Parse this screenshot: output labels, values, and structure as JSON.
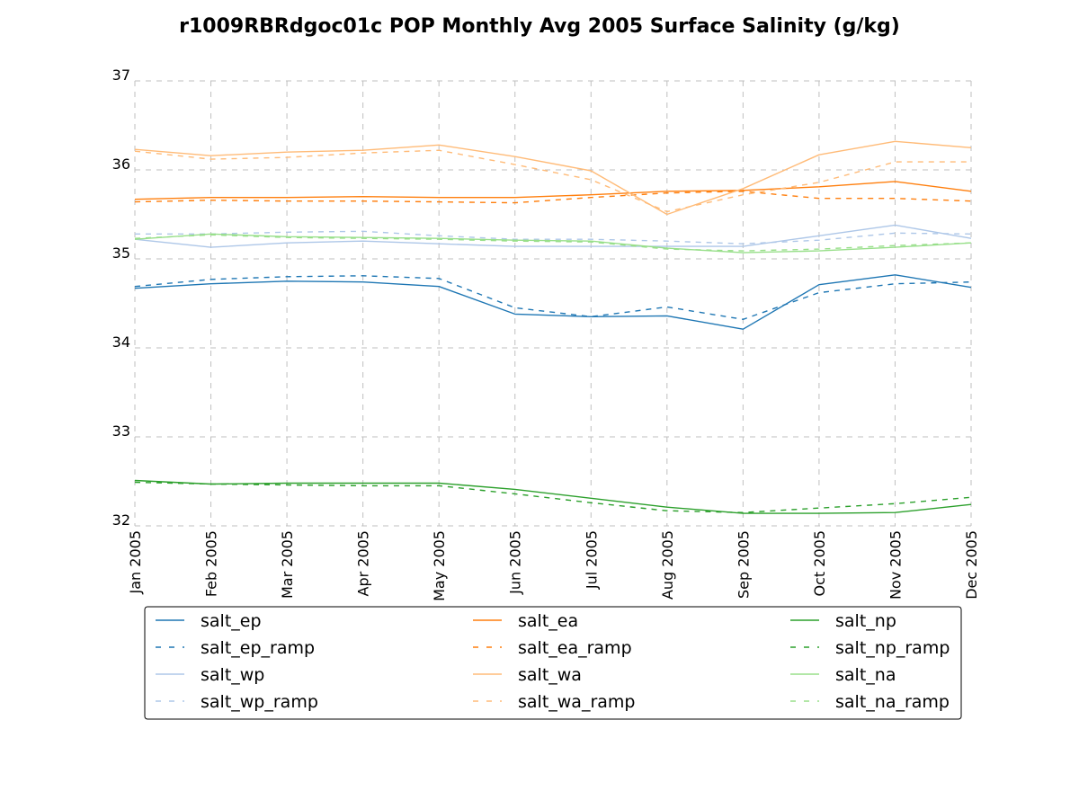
{
  "chart_data": {
    "type": "line",
    "title": "r1009RBRdgoc01c POP Monthly Avg 2005 Surface Salinity (g/kg)",
    "xlabel": "",
    "ylabel": "",
    "categories": [
      "Jan 2005",
      "Feb 2005",
      "Mar 2005",
      "Apr 2005",
      "May 2005",
      "Jun 2005",
      "Jul 2005",
      "Aug 2005",
      "Sep 2005",
      "Oct 2005",
      "Nov 2005",
      "Dec 2005"
    ],
    "ylim": [
      32,
      37
    ],
    "yticks": [
      "32",
      "33",
      "34",
      "35",
      "36",
      "37"
    ],
    "grid": true,
    "legend_position": "below",
    "series": [
      {
        "name": "salt_ep",
        "color": "#1f77b4",
        "dashed": false,
        "values": [
          34.67,
          34.72,
          34.75,
          34.74,
          34.69,
          34.38,
          34.35,
          34.36,
          34.21,
          34.71,
          34.82,
          34.68
        ]
      },
      {
        "name": "salt_ep_ramp",
        "color": "#1f77b4",
        "dashed": true,
        "values": [
          34.69,
          34.77,
          34.8,
          34.81,
          34.78,
          34.45,
          34.35,
          34.46,
          34.32,
          34.62,
          34.72,
          34.74
        ]
      },
      {
        "name": "salt_wp",
        "color": "#aec7e8",
        "dashed": false,
        "values": [
          35.22,
          35.13,
          35.18,
          35.2,
          35.17,
          35.14,
          35.14,
          35.14,
          35.14,
          35.26,
          35.38,
          35.23
        ]
      },
      {
        "name": "salt_wp_ramp",
        "color": "#aec7e8",
        "dashed": true,
        "values": [
          35.28,
          35.28,
          35.3,
          35.31,
          35.26,
          35.22,
          35.22,
          35.2,
          35.17,
          35.21,
          35.29,
          35.28
        ]
      },
      {
        "name": "salt_ea",
        "color": "#ff7f0e",
        "dashed": false,
        "values": [
          35.67,
          35.69,
          35.69,
          35.7,
          35.69,
          35.69,
          35.72,
          35.76,
          35.77,
          35.81,
          35.87,
          35.76
        ]
      },
      {
        "name": "salt_ea_ramp",
        "color": "#ff7f0e",
        "dashed": true,
        "values": [
          35.64,
          35.66,
          35.65,
          35.65,
          35.64,
          35.63,
          35.69,
          35.74,
          35.76,
          35.68,
          35.68,
          35.65
        ]
      },
      {
        "name": "salt_wa",
        "color": "#ffbb78",
        "dashed": false,
        "values": [
          36.23,
          36.16,
          36.2,
          36.22,
          36.28,
          36.15,
          35.99,
          35.5,
          35.79,
          36.17,
          36.32,
          36.25
        ]
      },
      {
        "name": "salt_wa_ramp",
        "color": "#ffbb78",
        "dashed": true,
        "values": [
          36.21,
          36.12,
          36.14,
          36.19,
          36.22,
          36.06,
          35.89,
          35.53,
          35.72,
          35.86,
          36.09,
          36.09
        ]
      },
      {
        "name": "salt_np",
        "color": "#2ca02c",
        "dashed": false,
        "values": [
          32.51,
          32.47,
          32.48,
          32.48,
          32.48,
          32.41,
          32.31,
          32.21,
          32.14,
          32.14,
          32.15,
          32.24
        ]
      },
      {
        "name": "salt_np_ramp",
        "color": "#2ca02c",
        "dashed": true,
        "values": [
          32.49,
          32.47,
          32.46,
          32.45,
          32.45,
          32.36,
          32.26,
          32.17,
          32.15,
          32.2,
          32.25,
          32.32
        ]
      },
      {
        "name": "salt_na",
        "color": "#98df8a",
        "dashed": false,
        "values": [
          35.22,
          35.28,
          35.25,
          35.24,
          35.23,
          35.21,
          35.2,
          35.12,
          35.07,
          35.09,
          35.13,
          35.18
        ]
      },
      {
        "name": "salt_na_ramp",
        "color": "#98df8a",
        "dashed": true,
        "values": [
          35.23,
          35.27,
          35.24,
          35.23,
          35.22,
          35.2,
          35.19,
          35.11,
          35.09,
          35.11,
          35.15,
          35.18
        ]
      }
    ],
    "legend_columns": [
      [
        "salt_ep",
        "salt_ep_ramp",
        "salt_wp",
        "salt_wp_ramp"
      ],
      [
        "salt_ea",
        "salt_ea_ramp",
        "salt_wa",
        "salt_wa_ramp"
      ],
      [
        "salt_np",
        "salt_np_ramp",
        "salt_na",
        "salt_na_ramp"
      ]
    ]
  }
}
